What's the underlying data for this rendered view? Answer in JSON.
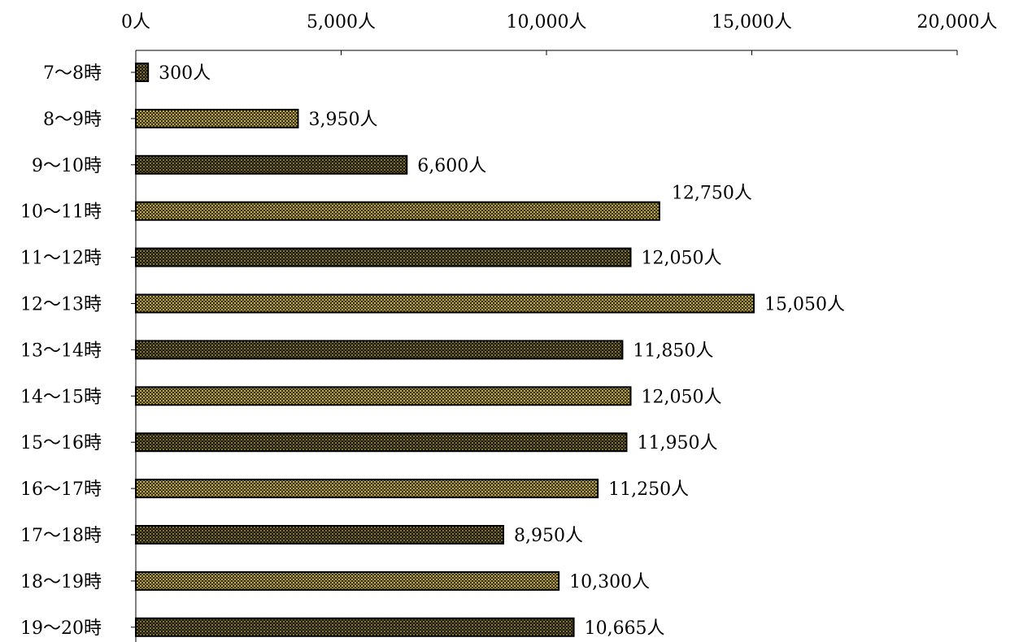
{
  "chart_data": {
    "type": "bar",
    "orientation": "horizontal",
    "title": "",
    "xlabel": "",
    "ylabel": "",
    "xlim": [
      0,
      20000
    ],
    "x_ticks": [
      0,
      5000,
      10000,
      15000,
      20000
    ],
    "x_tick_labels": [
      "0人",
      "5,000人",
      "10,000人",
      "15,000人",
      "20,000人"
    ],
    "x_axis_position": "top",
    "grid": false,
    "legend": "none",
    "bar_colors": [
      "#1c1a10",
      "#8a7a2e"
    ],
    "bar_fill_style": "dotted-pattern",
    "categories": [
      "7～8時",
      "8～9時",
      "9～10時",
      "10～11時",
      "11～12時",
      "12～13時",
      "13～14時",
      "14～15時",
      "15～16時",
      "16～17時",
      "17～18時",
      "18～19時",
      "19～20時"
    ],
    "values": [
      300,
      3950,
      6600,
      12750,
      12050,
      15050,
      11850,
      12050,
      11950,
      11250,
      8950,
      10300,
      10665
    ],
    "value_labels": [
      "300人",
      "3,950人",
      "6,600人",
      "12,750人",
      "12,050人",
      "15,050人",
      "11,850人",
      "12,050人",
      "11,950人",
      "11,250人",
      "8,950人",
      "10,300人",
      "10,665人"
    ]
  }
}
